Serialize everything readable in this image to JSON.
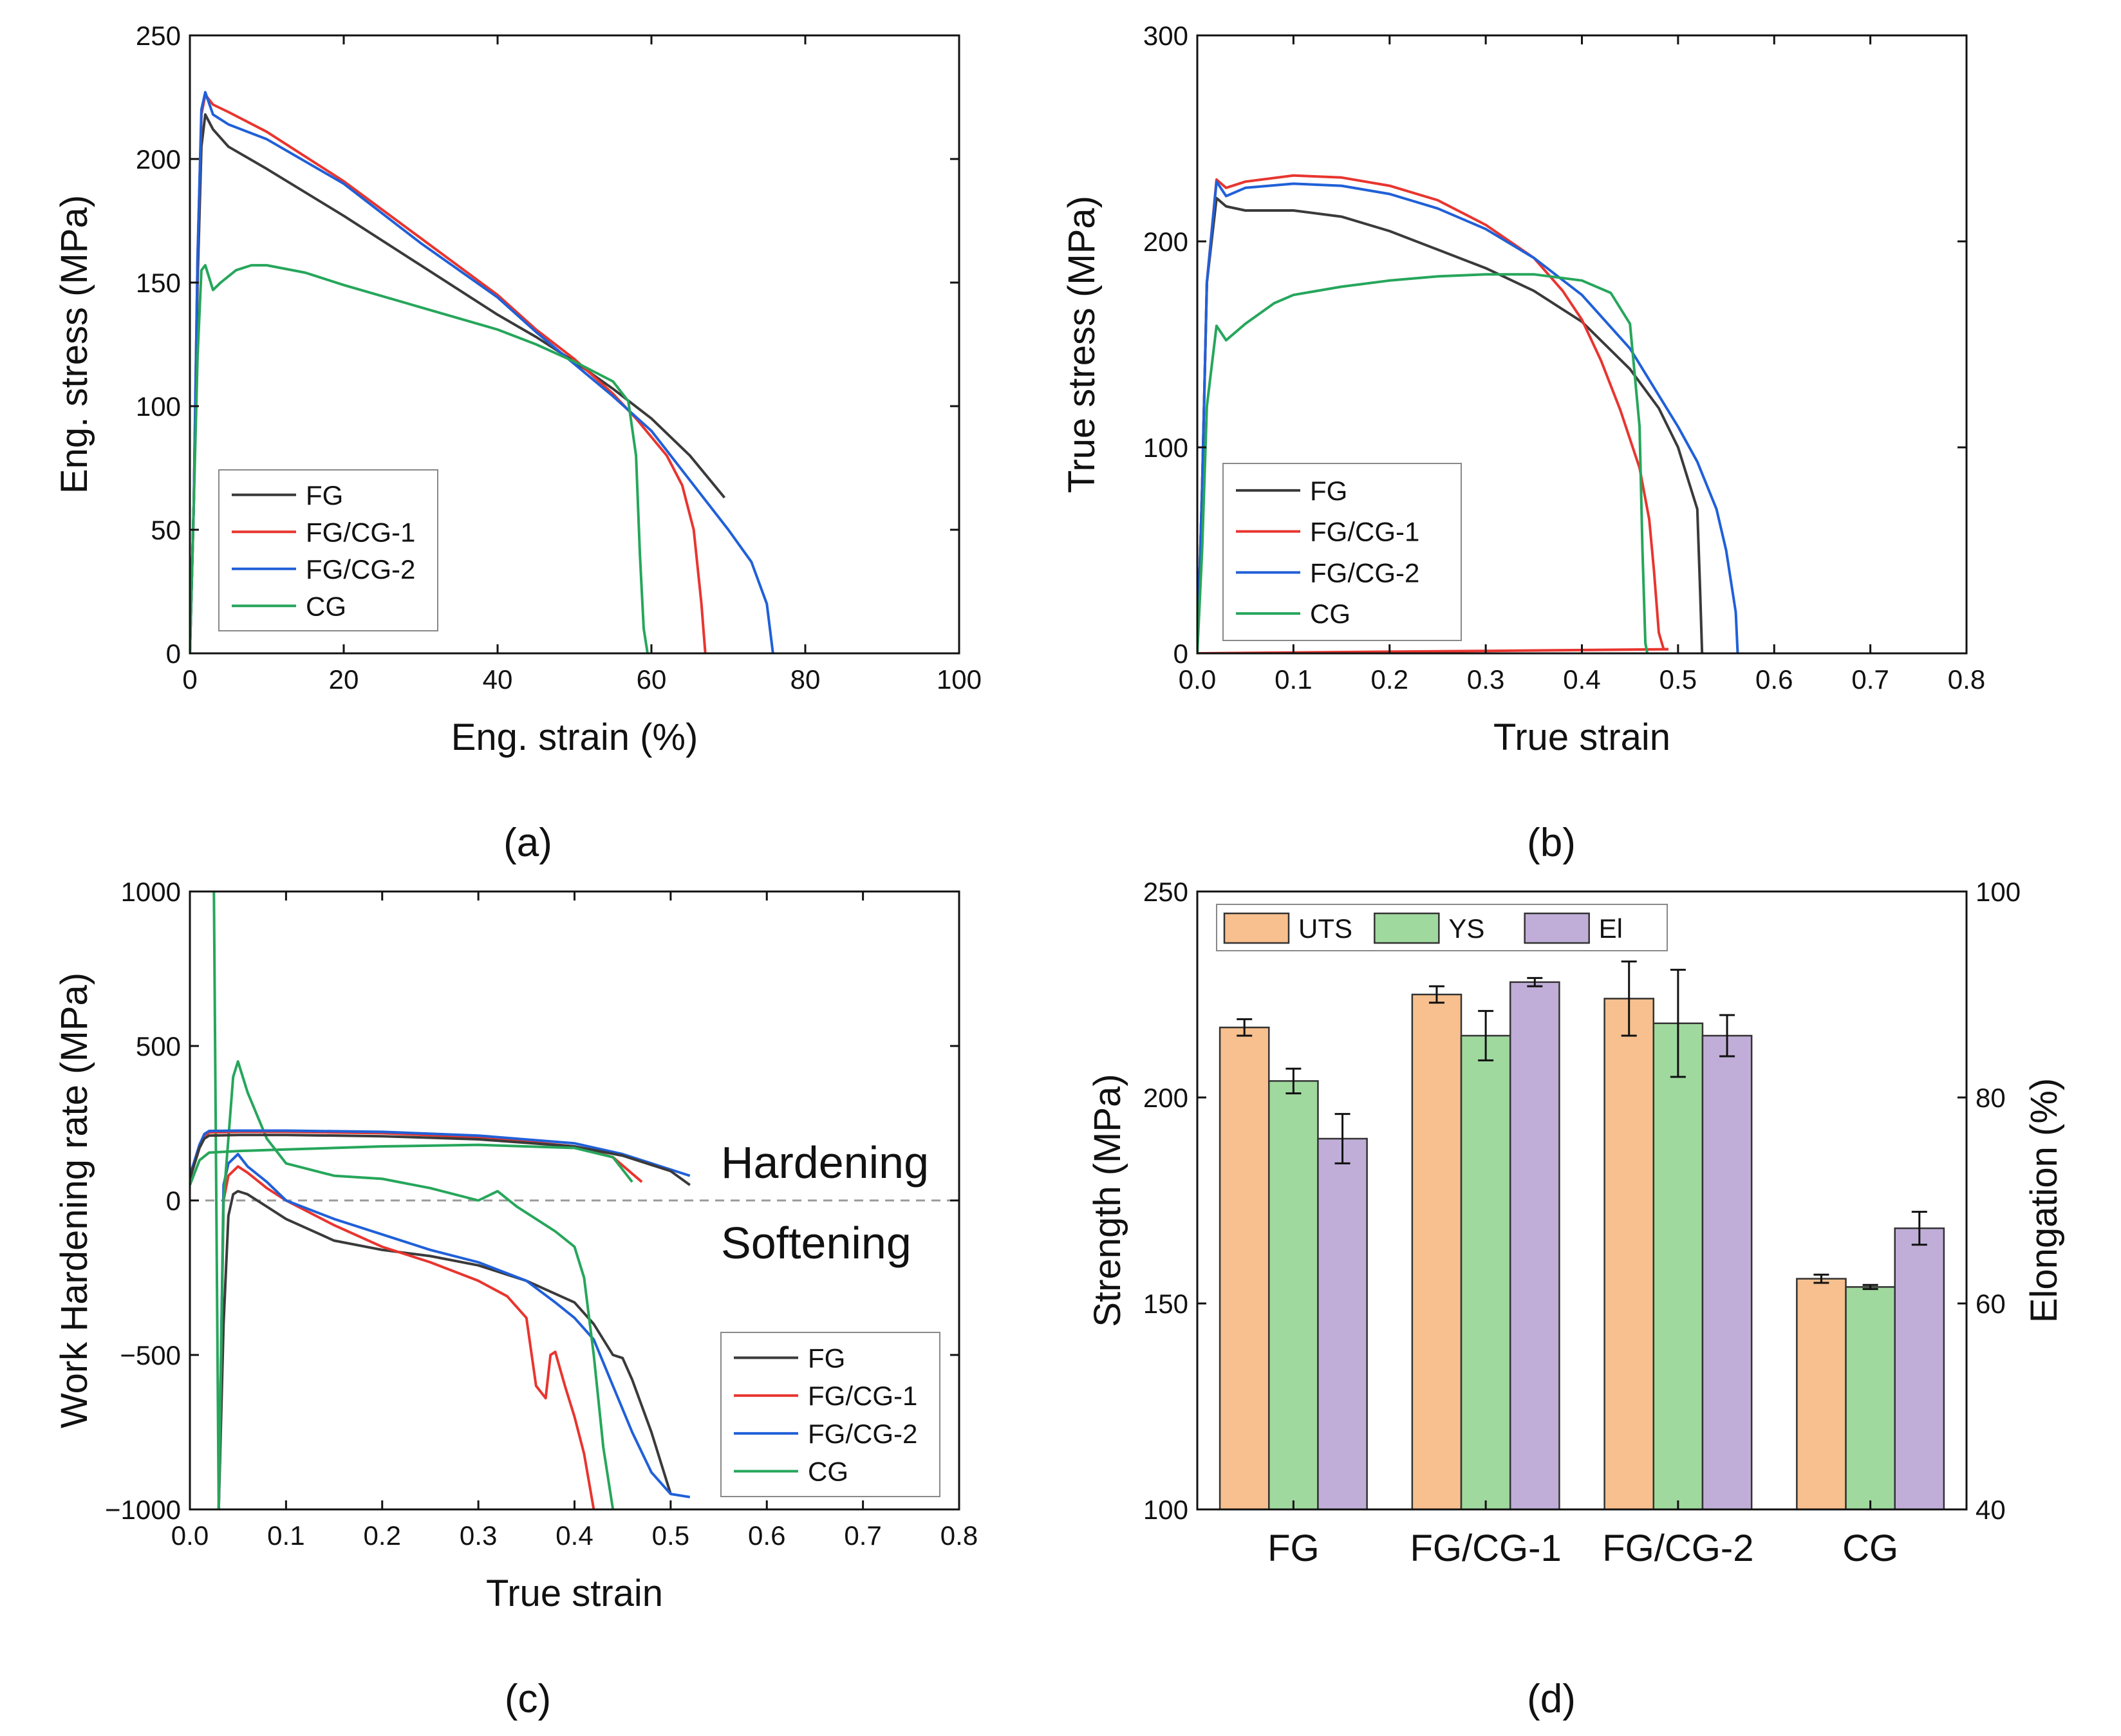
{
  "chart_data": [
    {
      "panel": "a",
      "caption": "(a)",
      "type": "line",
      "xlabel": "Eng. strain (%)",
      "ylabel": "Eng. stress (MPa)",
      "xlim": [
        0,
        100
      ],
      "ylim": [
        0,
        250
      ],
      "xticks": [
        0,
        20,
        40,
        60,
        80,
        100
      ],
      "yticks": [
        0,
        50,
        100,
        150,
        200,
        250
      ],
      "legend_position": "lower-left",
      "series": [
        {
          "name": "FG",
          "color": "#3a3a3a",
          "x": [
            0,
            0.5,
            1,
            1.5,
            2,
            3,
            5,
            10,
            20,
            30,
            40,
            45,
            50,
            55,
            60,
            65,
            69.5
          ],
          "y": [
            0,
            60,
            150,
            205,
            218,
            212,
            205,
            196,
            177,
            157,
            137,
            128,
            118,
            107,
            95,
            80,
            63
          ]
        },
        {
          "name": "FG/CG-1",
          "color": "#e8352f",
          "x": [
            0,
            0.5,
            1,
            1.5,
            2,
            3,
            5,
            10,
            20,
            30,
            40,
            45,
            50,
            55,
            58,
            62,
            64,
            65.5,
            66.5,
            67
          ],
          "y": [
            0,
            60,
            160,
            218,
            226,
            222,
            219,
            211,
            191,
            168,
            145,
            131,
            119,
            105,
            95,
            80,
            68,
            50,
            20,
            0
          ]
        },
        {
          "name": "FG/CG-2",
          "color": "#2060d8",
          "x": [
            0,
            0.5,
            1,
            1.5,
            2,
            3,
            5,
            10,
            20,
            30,
            40,
            45,
            50,
            55,
            60,
            65,
            70,
            73,
            75,
            75.8
          ],
          "y": [
            0,
            60,
            160,
            220,
            227,
            218,
            214,
            208,
            190,
            166,
            144,
            130,
            117,
            104,
            90,
            70,
            50,
            37,
            20,
            0
          ]
        },
        {
          "name": "CG",
          "color": "#26a65b",
          "x": [
            0,
            0.5,
            1,
            1.5,
            2,
            3,
            4,
            6,
            8,
            10,
            15,
            20,
            30,
            40,
            45,
            50,
            55,
            57,
            58,
            58.5,
            59,
            59.5
          ],
          "y": [
            0,
            60,
            120,
            155,
            157,
            147,
            150,
            155,
            157,
            157,
            154,
            149,
            140,
            131,
            125,
            118,
            110,
            102,
            80,
            40,
            10,
            0
          ]
        }
      ]
    },
    {
      "panel": "b",
      "caption": "(b)",
      "type": "line",
      "xlabel": "True strain",
      "ylabel": "True stress (MPa)",
      "xlim": [
        0,
        0.8
      ],
      "ylim": [
        0,
        300
      ],
      "xticks": [
        "0.0",
        "0.1",
        "0.2",
        "0.3",
        "0.4",
        "0.5",
        "0.6",
        "0.7",
        "0.8"
      ],
      "yticks": [
        0,
        100,
        200,
        300
      ],
      "legend_position": "lower-left",
      "series": [
        {
          "name": "FG",
          "color": "#3a3a3a",
          "x": [
            0,
            0.005,
            0.01,
            0.02,
            0.03,
            0.05,
            0.1,
            0.15,
            0.2,
            0.25,
            0.3,
            0.35,
            0.4,
            0.45,
            0.48,
            0.5,
            0.51,
            0.52,
            0.523,
            0.525
          ],
          "y": [
            0,
            80,
            180,
            221,
            217,
            215,
            215,
            212,
            205,
            196,
            187,
            176,
            161,
            138,
            119,
            100,
            85,
            70,
            30,
            0
          ]
        },
        {
          "name": "FG/CG-1",
          "color": "#e8352f",
          "x": [
            0,
            0.005,
            0.01,
            0.02,
            0.03,
            0.05,
            0.1,
            0.15,
            0.2,
            0.25,
            0.3,
            0.35,
            0.38,
            0.4,
            0.42,
            0.44,
            0.46,
            0.47,
            0.475,
            0.48,
            0.485,
            0.49
          ],
          "y": [
            0,
            80,
            180,
            230,
            226,
            229,
            232,
            231,
            227,
            220,
            208,
            192,
            176,
            162,
            142,
            118,
            90,
            65,
            40,
            10,
            2,
            2
          ]
        },
        {
          "name": "FG/CG-1 baseline",
          "color": "#e8352f",
          "x": [
            0.0,
            0.1,
            0.2,
            0.3,
            0.4,
            0.49
          ],
          "y": [
            0,
            0.4,
            0.8,
            1.2,
            1.6,
            2
          ]
        },
        {
          "name": "FG/CG-2",
          "color": "#2060d8",
          "x": [
            0,
            0.005,
            0.01,
            0.02,
            0.03,
            0.05,
            0.1,
            0.15,
            0.2,
            0.25,
            0.3,
            0.35,
            0.4,
            0.45,
            0.5,
            0.52,
            0.54,
            0.55,
            0.56,
            0.562
          ],
          "y": [
            0,
            80,
            180,
            229,
            222,
            226,
            228,
            227,
            223,
            216,
            206,
            192,
            174,
            148,
            110,
            93,
            70,
            50,
            20,
            0
          ]
        },
        {
          "name": "CG",
          "color": "#26a65b",
          "x": [
            0,
            0.005,
            0.01,
            0.02,
            0.03,
            0.05,
            0.08,
            0.1,
            0.15,
            0.2,
            0.25,
            0.3,
            0.35,
            0.4,
            0.43,
            0.45,
            0.46,
            0.463,
            0.466,
            0.468
          ],
          "y": [
            0,
            50,
            120,
            159,
            152,
            160,
            170,
            174,
            178,
            181,
            183,
            184,
            184,
            181,
            175,
            160,
            110,
            50,
            5,
            0
          ]
        }
      ]
    },
    {
      "panel": "c",
      "caption": "(c)",
      "type": "line",
      "xlabel": "True strain",
      "ylabel": "Work Hardening rate (MPa)",
      "xlim": [
        0,
        0.8
      ],
      "ylim": [
        -1000,
        1000
      ],
      "xticks": [
        "0.0",
        "0.1",
        "0.2",
        "0.3",
        "0.4",
        "0.5",
        "0.6",
        "0.7",
        "0.8"
      ],
      "yticks": [
        -1000,
        -500,
        0,
        500,
        1000
      ],
      "annotations": [
        "Hardening",
        "Softening"
      ],
      "legend_position": "lower-right",
      "series": [
        {
          "name": "FG",
          "color": "#3a3a3a",
          "x": [
            0.03,
            0.035,
            0.04,
            0.045,
            0.05,
            0.06,
            0.08,
            0.1,
            0.15,
            0.2,
            0.25,
            0.3,
            0.35,
            0.4,
            0.42,
            0.44,
            0.45,
            0.46,
            0.48,
            0.5
          ],
          "y": [
            -1000,
            -400,
            -50,
            20,
            30,
            20,
            -20,
            -60,
            -130,
            -160,
            -180,
            -210,
            -260,
            -330,
            -400,
            -500,
            -510,
            -580,
            -750,
            -950
          ]
        },
        {
          "name": "FG/CG-1",
          "color": "#e8352f",
          "x": [
            0.03,
            0.035,
            0.04,
            0.05,
            0.06,
            0.08,
            0.1,
            0.15,
            0.2,
            0.25,
            0.3,
            0.33,
            0.35,
            0.36,
            0.37,
            0.375,
            0.38,
            0.39,
            0.4,
            0.41,
            0.42
          ],
          "y": [
            -1000,
            0,
            80,
            110,
            90,
            40,
            0,
            -80,
            -150,
            -200,
            -260,
            -310,
            -380,
            -600,
            -640,
            -500,
            -490,
            -600,
            -700,
            -820,
            -1000
          ]
        },
        {
          "name": "FG/CG-2",
          "color": "#2060d8",
          "x": [
            0.03,
            0.035,
            0.04,
            0.05,
            0.06,
            0.08,
            0.1,
            0.15,
            0.2,
            0.25,
            0.3,
            0.35,
            0.38,
            0.4,
            0.42,
            0.44,
            0.46,
            0.48,
            0.5,
            0.52
          ],
          "y": [
            -1000,
            50,
            120,
            150,
            110,
            60,
            0,
            -60,
            -110,
            -160,
            -200,
            -260,
            -330,
            -380,
            -450,
            -600,
            -750,
            -880,
            -950,
            -960
          ]
        },
        {
          "name": "CG",
          "color": "#26a65b",
          "x": [
            0.025,
            0.03,
            0.035,
            0.04,
            0.045,
            0.05,
            0.06,
            0.08,
            0.1,
            0.15,
            0.2,
            0.25,
            0.3,
            0.32,
            0.34,
            0.36,
            0.38,
            0.4,
            0.41,
            0.42,
            0.43,
            0.44
          ],
          "y": [
            1000,
            -1000,
            0,
            200,
            400,
            450,
            350,
            200,
            120,
            80,
            70,
            40,
            0,
            30,
            -20,
            -60,
            -100,
            -150,
            -250,
            -500,
            -800,
            -1000
          ]
        },
        {
          "name": "FG/CG-1 hardening",
          "color": "#e8352f",
          "x": [
            0.0,
            0.01,
            0.015,
            0.02,
            0.05,
            0.1,
            0.2,
            0.3,
            0.4,
            0.44,
            0.47
          ],
          "y": [
            80,
            180,
            210,
            220,
            222,
            222,
            218,
            205,
            175,
            140,
            60
          ]
        },
        {
          "name": "FG/CG-2 hardening",
          "color": "#2060d8",
          "x": [
            0.0,
            0.01,
            0.015,
            0.02,
            0.05,
            0.1,
            0.2,
            0.3,
            0.4,
            0.45,
            0.5,
            0.52
          ],
          "y": [
            80,
            180,
            215,
            225,
            226,
            226,
            222,
            210,
            185,
            150,
            100,
            80
          ]
        },
        {
          "name": "FG hardening",
          "color": "#3a3a3a",
          "x": [
            0.0,
            0.01,
            0.015,
            0.02,
            0.05,
            0.1,
            0.2,
            0.3,
            0.4,
            0.45,
            0.5,
            0.52
          ],
          "y": [
            70,
            170,
            200,
            210,
            212,
            212,
            208,
            198,
            175,
            145,
            95,
            50
          ]
        },
        {
          "name": "CG hardening",
          "color": "#26a65b",
          "x": [
            0.0,
            0.01,
            0.02,
            0.05,
            0.1,
            0.2,
            0.3,
            0.4,
            0.44,
            0.46
          ],
          "y": [
            50,
            130,
            155,
            160,
            165,
            175,
            180,
            170,
            140,
            60
          ]
        }
      ]
    },
    {
      "panel": "d",
      "caption": "(d)",
      "type": "bar",
      "ylabel": "Strength (MPa)",
      "y2label": "Elongation (%)",
      "ylim": [
        100,
        250
      ],
      "y2lim": [
        40,
        100
      ],
      "yticks": [
        100,
        150,
        200,
        250
      ],
      "y2ticks": [
        40,
        60,
        80,
        100
      ],
      "categories": [
        "FG",
        "FG/CG-1",
        "FG/CG-2",
        "CG"
      ],
      "legend_position": "top-left",
      "series": [
        {
          "name": "UTS",
          "axis": "left",
          "color": "#f8c08e",
          "values": [
            217,
            225,
            224,
            156
          ],
          "errors": [
            2,
            2,
            9,
            1
          ]
        },
        {
          "name": "YS",
          "axis": "left",
          "color": "#a0d99e",
          "values": [
            204,
            215,
            218,
            154
          ],
          "errors": [
            3,
            6,
            13,
            0.5
          ]
        },
        {
          "name": "El",
          "axis": "right",
          "color": "#c0aed8",
          "values": [
            76,
            91.2,
            86,
            67.3
          ],
          "errors": [
            2.4,
            0.4,
            2,
            1.6
          ]
        }
      ]
    }
  ]
}
